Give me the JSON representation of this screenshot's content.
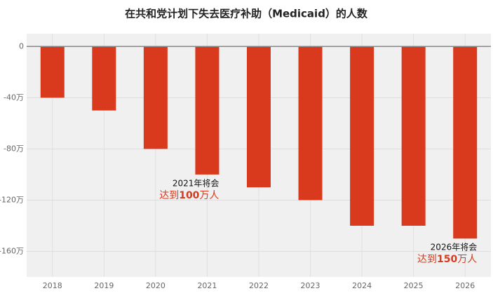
{
  "chart_data": {
    "type": "bar",
    "title": "在共和党计划下失去医疗补助（Medicaid）的人数",
    "categories": [
      "2018",
      "2019",
      "2020",
      "2021",
      "2022",
      "2023",
      "2024",
      "2025",
      "2026"
    ],
    "values": [
      -40,
      -50,
      -80,
      -100,
      -110,
      -120,
      -140,
      -140,
      -150
    ],
    "color": "#d9391c",
    "ylim": [
      -180,
      10
    ],
    "yticks": [
      0,
      {
        "value": -40,
        "label": "-40万"
      },
      {
        "value": -80,
        "label": "-80万"
      },
      {
        "value": -120,
        "label": "-120万"
      },
      {
        "value": -160,
        "label": "-160万"
      }
    ],
    "grid": true,
    "annotations": [
      {
        "category": 3,
        "line1": "2021年将会",
        "line2": [
          "达到",
          "100",
          "万人"
        ]
      },
      {
        "category": 8,
        "line1": "2026年将会",
        "line2": [
          "达到",
          "150",
          "万人"
        ]
      }
    ]
  }
}
